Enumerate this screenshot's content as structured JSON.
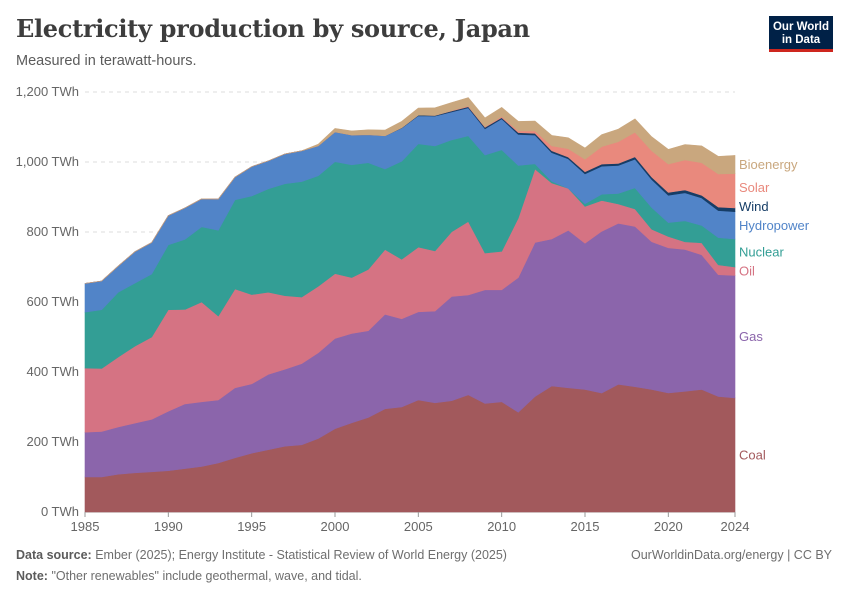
{
  "header": {
    "title": "Electricity production by source, Japan",
    "subtitle": "Measured in terawatt-hours."
  },
  "logo": {
    "line1": "Our World",
    "line2": "in Data",
    "bg": "#002147",
    "accent": "#ce261e"
  },
  "footer": {
    "source_label": "Data source:",
    "source_text": "Ember (2025); Energy Institute - Statistical Review of World Energy (2025)",
    "note_label": "Note:",
    "note_text": "\"Other renewables\" include geothermal, wave, and tidal.",
    "right_text": "OurWorldinData.org/energy | CC BY"
  },
  "chart_data": {
    "type": "area",
    "stacked": true,
    "title": "Electricity production by source, Japan",
    "subtitle": "Measured in terawatt-hours.",
    "xlim": [
      1985,
      2024
    ],
    "ylim": [
      0,
      1200
    ],
    "x_ticks": [
      1985,
      1990,
      1995,
      2000,
      2005,
      2010,
      2015,
      2020,
      2024
    ],
    "y_ticks": [
      0,
      200,
      400,
      600,
      800,
      1000,
      1200
    ],
    "y_tick_labels": [
      "0 TWh",
      "200 TWh",
      "400 TWh",
      "600 TWh",
      "800 TWh",
      "1,000 TWh",
      "1,200 TWh"
    ],
    "grid": "horizontal-dashed",
    "legend": "right-inline",
    "x": [
      1985,
      1986,
      1987,
      1988,
      1989,
      1990,
      1991,
      1992,
      1993,
      1994,
      1995,
      1996,
      1997,
      1998,
      1999,
      2000,
      2001,
      2002,
      2003,
      2004,
      2005,
      2006,
      2007,
      2008,
      2009,
      2010,
      2011,
      2012,
      2013,
      2014,
      2015,
      2016,
      2017,
      2018,
      2019,
      2020,
      2021,
      2022,
      2023,
      2024
    ],
    "series": [
      {
        "name": "Coal",
        "color": "#a2595c",
        "values": [
          100,
          100,
          108,
          112,
          115,
          118,
          124,
          130,
          140,
          155,
          168,
          178,
          188,
          192,
          210,
          238,
          255,
          270,
          295,
          300,
          320,
          312,
          318,
          335,
          310,
          315,
          285,
          330,
          360,
          355,
          350,
          340,
          365,
          358,
          350,
          340,
          345,
          350,
          330,
          326
        ]
      },
      {
        "name": "Gas",
        "color": "#8b65ab",
        "values": [
          128,
          130,
          135,
          142,
          150,
          170,
          185,
          185,
          180,
          200,
          198,
          215,
          220,
          232,
          245,
          258,
          255,
          248,
          270,
          252,
          252,
          262,
          298,
          285,
          325,
          320,
          385,
          440,
          420,
          450,
          418,
          462,
          460,
          458,
          422,
          415,
          405,
          385,
          348,
          350
        ]
      },
      {
        "name": "Oil",
        "color": "#d57383",
        "values": [
          183,
          180,
          200,
          220,
          235,
          290,
          270,
          285,
          240,
          282,
          255,
          235,
          210,
          190,
          190,
          185,
          160,
          175,
          185,
          170,
          185,
          172,
          185,
          210,
          105,
          110,
          170,
          210,
          160,
          120,
          105,
          88,
          55,
          50,
          36,
          32,
          22,
          34,
          28,
          24
        ]
      },
      {
        "name": "Nuclear",
        "color": "#339e95",
        "values": [
          160,
          168,
          185,
          180,
          180,
          185,
          200,
          215,
          245,
          255,
          282,
          295,
          320,
          330,
          316,
          320,
          322,
          305,
          230,
          280,
          295,
          300,
          262,
          245,
          280,
          290,
          150,
          15,
          5,
          0,
          8,
          18,
          30,
          60,
          62,
          40,
          60,
          50,
          78,
          80
        ]
      },
      {
        "name": "Hydropower",
        "color": "#5184c8",
        "values": [
          82,
          82,
          75,
          90,
          90,
          84,
          90,
          80,
          89,
          65,
          84,
          80,
          85,
          88,
          85,
          85,
          85,
          80,
          95,
          95,
          80,
          85,
          80,
          80,
          75,
          88,
          89,
          82,
          82,
          84,
          85,
          80,
          80,
          82,
          80,
          78,
          80,
          78,
          77,
          78
        ]
      },
      {
        "name": "Wind",
        "color": "#163d66",
        "values": [
          0,
          0,
          0,
          0,
          0,
          0,
          0,
          0,
          0,
          0,
          0,
          0,
          0,
          0,
          0,
          0,
          0,
          0,
          0,
          1,
          2,
          2,
          3,
          3,
          4,
          4,
          5,
          5,
          5,
          5,
          6,
          6,
          6,
          7,
          7,
          8,
          8,
          8,
          10,
          11
        ]
      },
      {
        "name": "Solar",
        "color": "#e9897d",
        "values": [
          0,
          0,
          0,
          0,
          0,
          0,
          0,
          0,
          0,
          0,
          0,
          0,
          0,
          0,
          0,
          0,
          0,
          0,
          0,
          0,
          0,
          0,
          1,
          2,
          2,
          3,
          5,
          7,
          14,
          24,
          36,
          50,
          62,
          70,
          75,
          81,
          86,
          93,
          95,
          98
        ]
      },
      {
        "name": "Bioenergy",
        "color": "#c9a77e",
        "values": [
          0,
          0,
          0,
          0,
          0,
          0,
          0,
          0,
          0,
          0,
          0,
          0,
          0,
          0,
          5,
          10,
          12,
          14,
          16,
          18,
          20,
          22,
          23,
          24,
          25,
          26,
          27,
          28,
          30,
          31,
          32,
          34,
          36,
          38,
          40,
          42,
          44,
          48,
          50,
          52
        ]
      }
    ]
  }
}
